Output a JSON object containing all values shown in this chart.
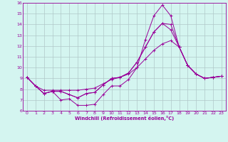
{
  "xlabel": "Windchill (Refroidissement éolien,°C)",
  "bg_color": "#d4f5f0",
  "grid_color": "#b0c8c8",
  "line_color": "#990099",
  "xmin": -0.5,
  "xmax": 23.5,
  "ymin": 6,
  "ymax": 16,
  "series": [
    [
      9.1,
      8.3,
      7.6,
      7.8,
      7.0,
      7.1,
      6.5,
      6.5,
      6.6,
      7.5,
      8.3,
      8.3,
      8.9,
      10.0,
      12.6,
      14.8,
      15.8,
      14.8,
      11.9,
      10.2,
      9.4,
      9.0,
      9.1,
      9.2
    ],
    [
      9.1,
      8.3,
      7.6,
      7.8,
      7.8,
      7.5,
      7.2,
      7.6,
      7.7,
      8.4,
      9.0,
      9.1,
      9.5,
      10.5,
      11.9,
      13.3,
      14.1,
      14.0,
      11.9,
      10.2,
      9.4,
      9.0,
      9.1,
      9.2
    ],
    [
      9.1,
      8.3,
      7.6,
      7.8,
      7.8,
      7.5,
      7.2,
      7.6,
      7.7,
      8.4,
      9.0,
      9.1,
      9.5,
      10.5,
      11.9,
      13.3,
      14.1,
      13.5,
      11.9,
      10.2,
      9.4,
      9.0,
      9.1,
      9.2
    ],
    [
      9.1,
      8.3,
      7.9,
      7.9,
      7.9,
      7.9,
      7.9,
      8.0,
      8.1,
      8.5,
      8.9,
      9.1,
      9.4,
      10.0,
      10.8,
      11.6,
      12.2,
      12.5,
      11.9,
      10.2,
      9.4,
      9.0,
      9.1,
      9.2
    ]
  ],
  "xticks": [
    0,
    1,
    2,
    3,
    4,
    5,
    6,
    7,
    8,
    9,
    10,
    11,
    12,
    13,
    14,
    15,
    16,
    17,
    18,
    19,
    20,
    21,
    22,
    23
  ],
  "yticks": [
    6,
    7,
    8,
    9,
    10,
    11,
    12,
    13,
    14,
    15,
    16
  ]
}
